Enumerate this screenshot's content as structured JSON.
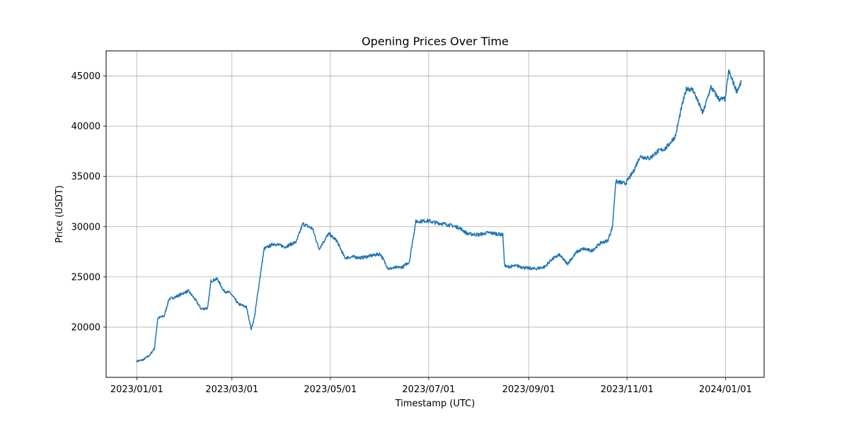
{
  "chart_data": {
    "type": "line",
    "title": "Opening Prices Over Time",
    "xlabel": "Timestamp (UTC)",
    "ylabel": "Price (USDT)",
    "grid": true,
    "legend": "none",
    "xlim": [
      "2022-12-13",
      "2024-01-25"
    ],
    "ylim": [
      15000,
      47500
    ],
    "x_ticks": [
      "2023-01-01",
      "2023-03-01",
      "2023-05-01",
      "2023-07-01",
      "2023-09-01",
      "2023-11-01",
      "2024-01-01"
    ],
    "x_tick_labels": [
      "2023/01/01",
      "2023/03/01",
      "2023/05/01",
      "2023/07/01",
      "2023/09/01",
      "2023/11/01",
      "2024/01/01"
    ],
    "y_ticks": [
      20000,
      25000,
      30000,
      35000,
      40000,
      45000
    ],
    "y_tick_labels": [
      "20000",
      "25000",
      "30000",
      "35000",
      "40000",
      "45000"
    ],
    "series": [
      {
        "color": "#1f77b4",
        "x": [
          "2023-01-01",
          "2023-01-05",
          "2023-01-09",
          "2023-01-12",
          "2023-01-14",
          "2023-01-18",
          "2023-01-21",
          "2023-01-25",
          "2023-01-30",
          "2023-02-02",
          "2023-02-06",
          "2023-02-10",
          "2023-02-14",
          "2023-02-16",
          "2023-02-20",
          "2023-02-24",
          "2023-02-28",
          "2023-03-05",
          "2023-03-10",
          "2023-03-13",
          "2023-03-15",
          "2023-03-18",
          "2023-03-21",
          "2023-03-27",
          "2023-04-03",
          "2023-04-10",
          "2023-04-14",
          "2023-04-20",
          "2023-04-24",
          "2023-04-30",
          "2023-05-05",
          "2023-05-10",
          "2023-05-15",
          "2023-05-20",
          "2023-05-26",
          "2023-06-01",
          "2023-06-06",
          "2023-06-10",
          "2023-06-15",
          "2023-06-19",
          "2023-06-21",
          "2023-06-23",
          "2023-06-30",
          "2023-07-05",
          "2023-07-10",
          "2023-07-13",
          "2023-07-20",
          "2023-07-25",
          "2023-08-01",
          "2023-08-07",
          "2023-08-12",
          "2023-08-16",
          "2023-08-17",
          "2023-08-18",
          "2023-08-25",
          "2023-08-30",
          "2023-09-05",
          "2023-09-11",
          "2023-09-15",
          "2023-09-20",
          "2023-09-25",
          "2023-10-01",
          "2023-10-05",
          "2023-10-10",
          "2023-10-16",
          "2023-10-20",
          "2023-10-23",
          "2023-10-25",
          "2023-10-31",
          "2023-11-05",
          "2023-11-09",
          "2023-11-15",
          "2023-11-20",
          "2023-11-25",
          "2023-12-01",
          "2023-12-05",
          "2023-12-08",
          "2023-12-12",
          "2023-12-18",
          "2023-12-23",
          "2023-12-28",
          "2024-01-01",
          "2024-01-03",
          "2024-01-08",
          "2024-01-11"
        ],
        "y": [
          16600,
          16750,
          17200,
          17900,
          20900,
          21100,
          22800,
          23000,
          23400,
          23600,
          22800,
          21800,
          21900,
          24600,
          24800,
          23600,
          23400,
          22300,
          22000,
          19800,
          21000,
          24500,
          27800,
          28300,
          28000,
          28500,
          30300,
          29800,
          27800,
          29300,
          28600,
          26900,
          27000,
          26900,
          27100,
          27300,
          25800,
          25900,
          26000,
          26500,
          28500,
          30500,
          30600,
          30400,
          30300,
          30200,
          29900,
          29300,
          29200,
          29400,
          29300,
          29200,
          26300,
          26000,
          26100,
          25900,
          25800,
          26000,
          26700,
          27200,
          26300,
          27500,
          27800,
          27600,
          28400,
          28600,
          30000,
          34500,
          34300,
          35500,
          37000,
          36800,
          37500,
          37800,
          39000,
          42000,
          43800,
          43600,
          41300,
          43900,
          42700,
          42700,
          45500,
          43500,
          44400
        ]
      }
    ]
  }
}
